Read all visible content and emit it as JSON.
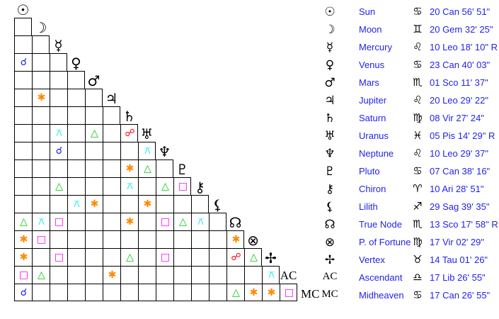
{
  "planets": [
    {
      "glyph": "☉",
      "name": "Sun",
      "sign": "♋",
      "position": "20 Can 56' 51\""
    },
    {
      "glyph": "☽",
      "name": "Moon",
      "sign": "♊",
      "position": "20 Gem 32' 25\""
    },
    {
      "glyph": "☿",
      "name": "Mercury",
      "sign": "♌",
      "position": "10 Leo 18' 10\" R"
    },
    {
      "glyph": "♀",
      "name": "Venus",
      "sign": "♋",
      "position": "23 Can 40' 03\""
    },
    {
      "glyph": "♂",
      "name": "Mars",
      "sign": "♏",
      "position": "01 Sco 11' 37\""
    },
    {
      "glyph": "♃",
      "name": "Jupiter",
      "sign": "♌",
      "position": "20 Leo 29' 22\""
    },
    {
      "glyph": "♄",
      "name": "Saturn",
      "sign": "♍",
      "position": "08 Vir 27' 24\""
    },
    {
      "glyph": "♅",
      "name": "Uranus",
      "sign": "♓",
      "position": "05 Pis 14' 29\" R"
    },
    {
      "glyph": "♆",
      "name": "Neptune",
      "sign": "♌",
      "position": "10 Leo 29' 37\""
    },
    {
      "glyph": "♇",
      "name": "Pluto",
      "sign": "♋",
      "position": "07 Can 38' 16\""
    },
    {
      "glyph": "⚷",
      "name": "Chiron",
      "sign": "♈",
      "position": "10 Ari 28' 51\""
    },
    {
      "glyph": "⚸",
      "name": "Lilith",
      "sign": "♐",
      "position": "29 Sag 39' 35\""
    },
    {
      "glyph": "☊",
      "name": "True Node",
      "sign": "♏",
      "position": "13 Sco 17' 58\" R"
    },
    {
      "glyph": "⊗",
      "name": "P. of Fortune",
      "sign": "♍",
      "position": "17 Vir 02' 29\""
    },
    {
      "glyph": "✢",
      "name": "Vertex",
      "sign": "♉",
      "position": "14 Tau 01' 26\""
    },
    {
      "glyph": "AC",
      "name": "Ascendant",
      "sign": "♎",
      "position": "17 Lib 26' 55\""
    },
    {
      "glyph": "MC",
      "name": "Midheaven",
      "sign": "♋",
      "position": "17 Can 26' 55\""
    }
  ],
  "aspect_types": {
    "conjunction": {
      "glyph": "☌",
      "color": "#1a1aff"
    },
    "sextile": {
      "glyph": "✱",
      "color": "#ff8800"
    },
    "quincunx": {
      "glyph": "⚻",
      "color": "#00e5ee"
    },
    "trine": {
      "glyph": "△",
      "color": "#00cc00"
    },
    "square": {
      "glyph": "□",
      "color": "#ff00ff"
    },
    "opposition": {
      "glyph": "☍",
      "color": "#ff0000"
    }
  },
  "aspects": [
    {
      "row": 3,
      "col": 0,
      "type": "conjunction"
    },
    {
      "row": 5,
      "col": 1,
      "type": "sextile"
    },
    {
      "row": 7,
      "col": 2,
      "type": "quincunx"
    },
    {
      "row": 7,
      "col": 4,
      "type": "trine"
    },
    {
      "row": 7,
      "col": 6,
      "type": "opposition"
    },
    {
      "row": 8,
      "col": 2,
      "type": "conjunction"
    },
    {
      "row": 8,
      "col": 7,
      "type": "quincunx"
    },
    {
      "row": 9,
      "col": 6,
      "type": "sextile"
    },
    {
      "row": 9,
      "col": 7,
      "type": "trine"
    },
    {
      "row": 10,
      "col": 2,
      "type": "trine"
    },
    {
      "row": 10,
      "col": 6,
      "type": "quincunx"
    },
    {
      "row": 10,
      "col": 8,
      "type": "trine"
    },
    {
      "row": 10,
      "col": 9,
      "type": "square"
    },
    {
      "row": 11,
      "col": 3,
      "type": "quincunx"
    },
    {
      "row": 11,
      "col": 4,
      "type": "sextile"
    },
    {
      "row": 11,
      "col": 7,
      "type": "sextile"
    },
    {
      "row": 12,
      "col": 0,
      "type": "trine"
    },
    {
      "row": 12,
      "col": 1,
      "type": "quincunx"
    },
    {
      "row": 12,
      "col": 2,
      "type": "square"
    },
    {
      "row": 12,
      "col": 6,
      "type": "sextile"
    },
    {
      "row": 12,
      "col": 8,
      "type": "square"
    },
    {
      "row": 12,
      "col": 9,
      "type": "trine"
    },
    {
      "row": 12,
      "col": 10,
      "type": "quincunx"
    },
    {
      "row": 13,
      "col": 0,
      "type": "sextile"
    },
    {
      "row": 13,
      "col": 1,
      "type": "square"
    },
    {
      "row": 13,
      "col": 12,
      "type": "sextile"
    },
    {
      "row": 14,
      "col": 0,
      "type": "sextile"
    },
    {
      "row": 14,
      "col": 2,
      "type": "square"
    },
    {
      "row": 14,
      "col": 6,
      "type": "trine"
    },
    {
      "row": 14,
      "col": 8,
      "type": "square"
    },
    {
      "row": 14,
      "col": 12,
      "type": "opposition"
    },
    {
      "row": 14,
      "col": 13,
      "type": "trine"
    },
    {
      "row": 15,
      "col": 0,
      "type": "square"
    },
    {
      "row": 15,
      "col": 1,
      "type": "trine"
    },
    {
      "row": 15,
      "col": 5,
      "type": "sextile"
    },
    {
      "row": 15,
      "col": 14,
      "type": "quincunx"
    },
    {
      "row": 16,
      "col": 0,
      "type": "conjunction"
    },
    {
      "row": 16,
      "col": 12,
      "type": "trine"
    },
    {
      "row": 16,
      "col": 13,
      "type": "sextile"
    },
    {
      "row": 16,
      "col": 14,
      "type": "sextile"
    },
    {
      "row": 16,
      "col": 15,
      "type": "square"
    }
  ]
}
